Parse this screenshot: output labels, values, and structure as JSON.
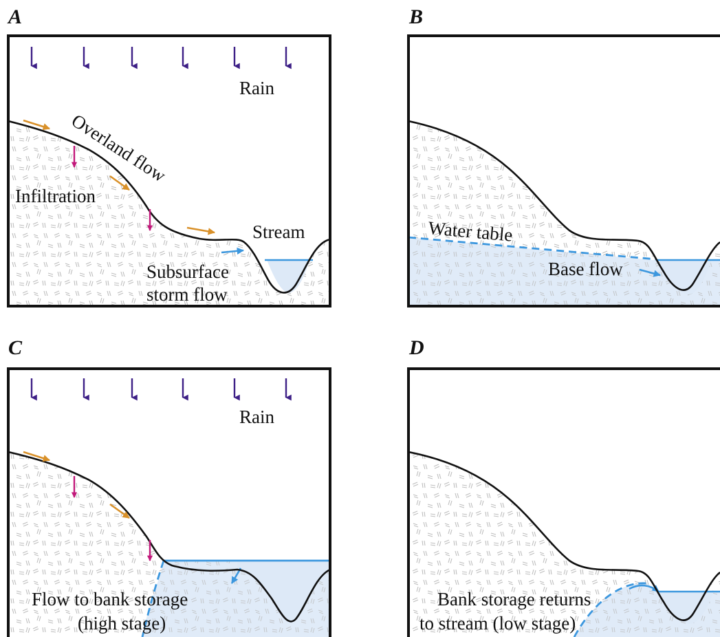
{
  "panels": {
    "a": {
      "letter": "A",
      "rain": "Rain",
      "overland": "Overland flow",
      "infiltration": "Infiltration",
      "stream": "Stream",
      "subsurface_1": "Subsurface",
      "subsurface_2": "storm flow"
    },
    "b": {
      "letter": "B",
      "water_table": "Water table",
      "base_flow": "Base flow"
    },
    "c": {
      "letter": "C",
      "rain": "Rain",
      "bank_1": "Flow to bank storage",
      "bank_2": "(high stage)"
    },
    "d": {
      "letter": "D",
      "returns_1": "Bank storage returns",
      "returns_2": "to stream (low stage)"
    }
  },
  "colors": {
    "rain_arrow": "#3d1f86",
    "overland_arrow": "#d9912a",
    "infiltration_arrow": "#c2187a",
    "water": "#3c97de",
    "water_fill": "#dde9f7",
    "soil_dash": "#bdbdbd"
  }
}
